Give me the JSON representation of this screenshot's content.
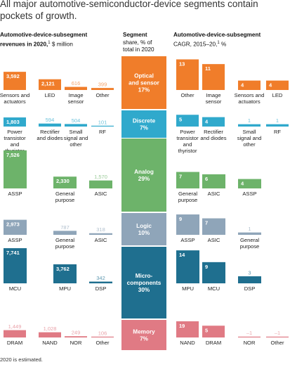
{
  "title": "All major automotive-semiconductor-device segments contain\npockets of growth.",
  "headers": {
    "revenue": {
      "bold": "Automotive-device-subsegment\nrevenues in 2020,",
      "sup": "1",
      "rest": " $ million"
    },
    "share": {
      "bold": "Segment",
      "rest": "share, % of\ntotal in 2020"
    },
    "cagr": {
      "bold": "Automotive-device-subsegment",
      "rest": "CAGR, 2015–20,",
      "sup": "1",
      "rest2": " %"
    }
  },
  "footnote": "2020 is estimated.",
  "colors": {
    "optical": "#f07d2a",
    "discrete": "#30a9cc",
    "analog": "#6db36a",
    "logic": "#8fa5b9",
    "micro": "#1f6f8f",
    "memory": "#e07a84"
  },
  "chart_data": [
    {
      "type": "bar",
      "name": "revenue",
      "groups": [
        {
          "segment": "optical",
          "categories": [
            "Sensors and actuators",
            "LED",
            "Image sensor",
            "Other"
          ],
          "values": [
            3592,
            2121,
            616,
            399
          ]
        },
        {
          "segment": "discrete",
          "categories": [
            "Power transistor and thyristor",
            "Rectifier and diodes",
            "Small signal and other",
            "RF"
          ],
          "values": [
            1803,
            594,
            504,
            101
          ]
        },
        {
          "segment": "analog",
          "categories": [
            "ASSP",
            "General purpose",
            "ASIC"
          ],
          "values": [
            7526,
            2330,
            1570
          ]
        },
        {
          "segment": "logic",
          "categories": [
            "ASSP",
            "General purpose",
            "ASIC"
          ],
          "values": [
            2973,
            787,
            318
          ]
        },
        {
          "segment": "micro",
          "categories": [
            "MCU",
            "MPU",
            "DSP"
          ],
          "values": [
            7741,
            3762,
            342
          ]
        },
        {
          "segment": "memory",
          "categories": [
            "DRAM",
            "NAND",
            "NOR",
            "Other"
          ],
          "values": [
            1449,
            1028,
            249,
            106
          ]
        }
      ]
    },
    {
      "type": "bar",
      "name": "segment share",
      "segments": [
        {
          "key": "optical",
          "label": "Optical\nand sensor",
          "value": 17
        },
        {
          "key": "discrete",
          "label": "Discrete",
          "value": 7
        },
        {
          "key": "analog",
          "label": "Analog",
          "value": 29
        },
        {
          "key": "logic",
          "label": "Logic",
          "value": 10
        },
        {
          "key": "micro",
          "label": "Micro-\ncomponents",
          "value": 30
        },
        {
          "key": "memory",
          "label": "Memory",
          "value": 7
        }
      ],
      "unit": "%"
    },
    {
      "type": "bar",
      "name": "cagr",
      "groups": [
        {
          "segment": "optical",
          "categories": [
            "Other",
            "Image sensor",
            "Sensors and actuators",
            "LED"
          ],
          "values": [
            13,
            11,
            4,
            4
          ]
        },
        {
          "segment": "discrete",
          "categories": [
            "Power transistor and thyristor",
            "Rectifier and diodes",
            "Small signal and other",
            "RF"
          ],
          "values": [
            5,
            4,
            1,
            1
          ]
        },
        {
          "segment": "analog",
          "categories": [
            "General purpose",
            "ASIC",
            "ASSP"
          ],
          "values": [
            7,
            6,
            4
          ]
        },
        {
          "segment": "logic",
          "categories": [
            "ASSP",
            "ASIC",
            "General purpose"
          ],
          "values": [
            9,
            7,
            1
          ]
        },
        {
          "segment": "micro",
          "categories": [
            "MPU",
            "MCU",
            "DSP"
          ],
          "values": [
            14,
            9,
            3
          ]
        },
        {
          "segment": "memory",
          "categories": [
            "NAND",
            "DRAM",
            "NOR",
            "Other"
          ],
          "values": [
            19,
            5,
            -1,
            -1
          ]
        }
      ]
    }
  ]
}
